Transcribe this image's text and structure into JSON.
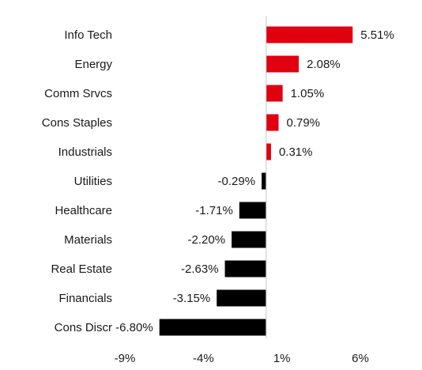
{
  "chart_data": {
    "type": "bar",
    "orientation": "horizontal",
    "categories": [
      "Info Tech",
      "Energy",
      "Comm Srvcs",
      "Cons Staples",
      "Industrials",
      "Utilities",
      "Healthcare",
      "Materials",
      "Real Estate",
      "Financials",
      "Cons Discr"
    ],
    "values": [
      5.51,
      2.08,
      1.05,
      0.79,
      0.31,
      -0.29,
      -1.71,
      -2.2,
      -2.63,
      -3.15,
      -6.8
    ],
    "data_labels": [
      "5.51%",
      "2.08%",
      "1.05%",
      "0.79%",
      "0.31%",
      "-0.29%",
      "-1.71%",
      "-2.20%",
      "-2.63%",
      "-3.15%",
      "-6.80%"
    ],
    "x_ticks": [
      -9,
      -4,
      1,
      6
    ],
    "x_tick_labels": [
      "-9%",
      "-4%",
      "1%",
      "6%"
    ],
    "xlim": [
      -9,
      6
    ],
    "colors": {
      "positive": "#e1000f",
      "negative": "#000000",
      "zero_line": "#c8c8c8"
    },
    "grid": false,
    "legend": "none"
  }
}
